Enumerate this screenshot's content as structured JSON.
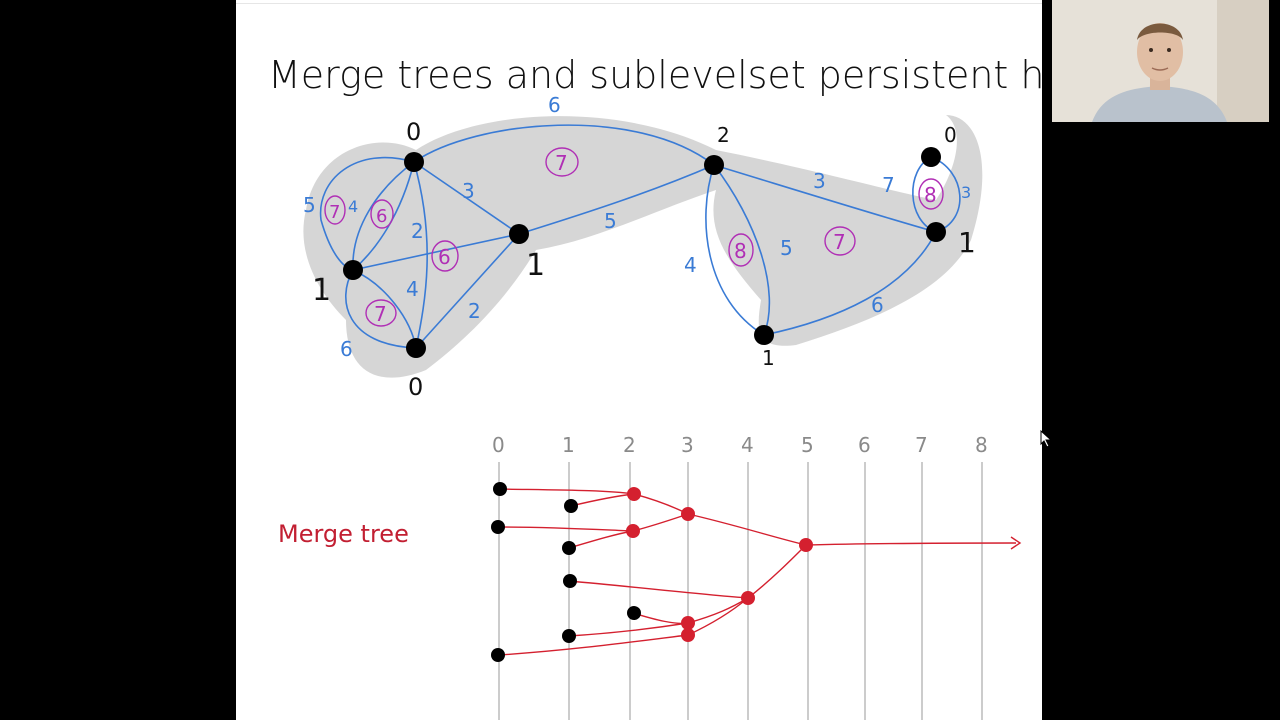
{
  "slide": {
    "title": "Merge trees and sublevelset persistent homology",
    "merge_label": "Merge tree"
  },
  "graph": {
    "vertex_labels": [
      "0",
      "1",
      "0",
      "1",
      "2",
      "1",
      "0",
      "1"
    ],
    "edge_labels": [
      "6",
      "5",
      "4",
      "3",
      "2",
      "4",
      "2",
      "6",
      "5",
      "4",
      "5",
      "3",
      "7",
      "3",
      "6"
    ],
    "face_labels": [
      "7",
      "6",
      "7",
      "6",
      "8",
      "7",
      "8",
      "7"
    ]
  },
  "tree": {
    "axis_ticks": [
      "0",
      "1",
      "2",
      "3",
      "4",
      "5",
      "6",
      "7",
      "8"
    ]
  },
  "colors": {
    "edge_blue": "#3a7bd5",
    "face_purple": "#b02fb5",
    "tree_red": "#d4202f",
    "shade_gray": "#cfcfcf"
  }
}
